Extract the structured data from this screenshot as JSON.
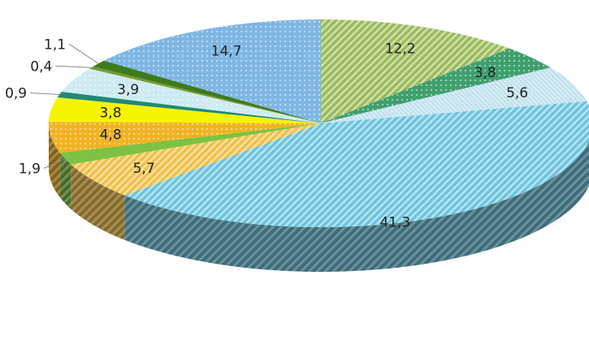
{
  "chart_data": {
    "type": "pie",
    "style": "3d",
    "title": "",
    "start": "top, clockwise",
    "slices": [
      {
        "label": "12,2",
        "value": 12.2,
        "color": "#9BBB59",
        "pattern": "diagonal"
      },
      {
        "label": "3,8",
        "value": 3.8,
        "color": "#3F9F6E",
        "pattern": "dots"
      },
      {
        "label": "5,6",
        "value": 5.6,
        "color": "#BFE0EC",
        "pattern": "fine"
      },
      {
        "label": "41,3",
        "value": 41.3,
        "color": "#6DC4DE",
        "pattern": "diagonal"
      },
      {
        "label": "5,7",
        "value": 5.7,
        "color": "#F2C046",
        "pattern": "diagonal"
      },
      {
        "label": "1,9",
        "value": 1.9,
        "color": "#7DC242",
        "pattern": "none"
      },
      {
        "label": "4,8",
        "value": 4.8,
        "color": "#F0B323",
        "pattern": "dots"
      },
      {
        "label": "3,8",
        "value": 3.8,
        "color": "#F5F500",
        "pattern": "none"
      },
      {
        "label": "0,9",
        "value": 0.9,
        "color": "#1F8A74",
        "pattern": "none"
      },
      {
        "label": "3,9",
        "value": 3.9,
        "color": "#CDEBF2",
        "pattern": "dots"
      },
      {
        "label": "0,4",
        "value": 0.4,
        "color": "#7A9A2E",
        "pattern": "none"
      },
      {
        "label": "1,1",
        "value": 1.1,
        "color": "#3E7A1E",
        "pattern": "none"
      },
      {
        "label": "14,7",
        "value": 14.7,
        "color": "#7FB6E4",
        "pattern": "dots"
      }
    ]
  }
}
